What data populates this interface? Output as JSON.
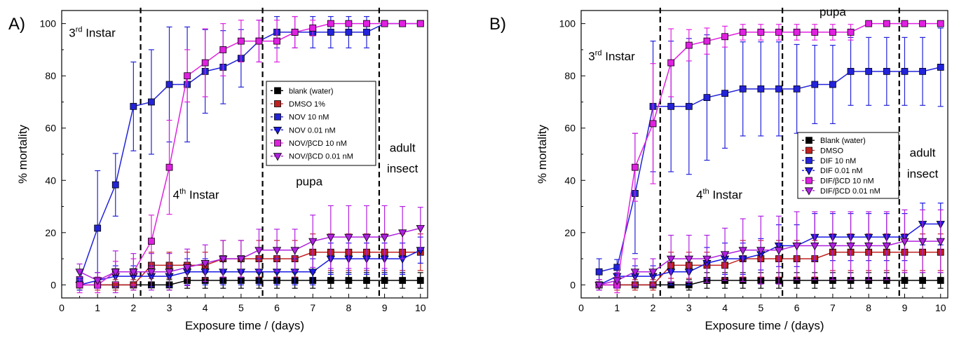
{
  "chart_data": [
    {
      "type": "line",
      "panel_label": "A)",
      "xlabel": "Exposure time / (days)",
      "ylabel": "% mortality",
      "xlim": [
        0,
        10.2
      ],
      "ylim": [
        -5,
        105
      ],
      "xticks": [
        0,
        1,
        2,
        3,
        4,
        5,
        6,
        7,
        8,
        9,
        10
      ],
      "yticks": [
        0,
        20,
        40,
        60,
        80,
        100
      ],
      "x": [
        0.5,
        1,
        1.5,
        2,
        2.5,
        3,
        3.5,
        4,
        4.5,
        5,
        5.5,
        6,
        6.5,
        7,
        7.5,
        8,
        8.5,
        9,
        9.5,
        10
      ],
      "stage_boundaries": [
        2.2,
        5.6,
        8.85
      ],
      "stage_labels": [
        {
          "base": "3",
          "sup": "rd",
          "rest": " Instar",
          "x": 0.2,
          "y": 95
        },
        {
          "base": "4",
          "sup": "th",
          "rest": " Instar",
          "x": 3.1,
          "y": 33
        },
        {
          "base": "pupa",
          "sup": "",
          "rest": "",
          "x": 6.9,
          "y": 38
        },
        {
          "base": "adult",
          "sup": "",
          "rest": "",
          "x": 9.5,
          "y": 51
        },
        {
          "base": "insect",
          "sup": "",
          "rest": "",
          "x": 9.5,
          "y": 43
        }
      ],
      "legend_position": "center-right",
      "series": [
        {
          "name": "blank (water)",
          "color": "#000000",
          "marker": "square",
          "values": [
            0,
            0,
            0,
            0,
            0,
            0,
            1.7,
            1.7,
            1.7,
            1.7,
            1.7,
            1.7,
            1.7,
            1.7,
            1.7,
            1.7,
            1.7,
            1.7,
            1.7,
            1.7
          ],
          "errors": [
            1,
            1,
            1,
            1,
            1,
            2,
            3,
            3,
            3,
            3,
            3,
            3,
            3,
            3,
            3,
            3,
            3,
            3,
            3,
            3
          ]
        },
        {
          "name": "DMSO 1%",
          "color": "#c02020",
          "marker": "square",
          "values": [
            0,
            0,
            0,
            0,
            7.5,
            7.5,
            7.5,
            7.5,
            10,
            10,
            10,
            10,
            10,
            12.5,
            12.5,
            12.5,
            12.5,
            12.5,
            12.5,
            12.5
          ],
          "errors": [
            2,
            2,
            2,
            2,
            5,
            5,
            5,
            5,
            7,
            7,
            7,
            7,
            7,
            7,
            7,
            7,
            7,
            7,
            7,
            7
          ]
        },
        {
          "name": "NOV 10 nM",
          "color": "#2323d9",
          "marker": "square",
          "values": [
            2,
            21.7,
            38.3,
            68.3,
            70,
            76.7,
            76.7,
            81.7,
            83.3,
            86.7,
            93.3,
            96.7,
            96.7,
            96.7,
            96.7,
            96.7,
            96.7,
            100,
            100,
            100
          ],
          "errors": [
            3,
            22,
            12,
            17,
            20,
            22,
            22,
            16,
            14,
            11,
            8,
            6,
            6,
            6,
            6,
            6,
            6,
            0,
            0,
            0
          ]
        },
        {
          "name": "NOV 0.01 nM",
          "color": "#1a1ae6",
          "marker": "triangle-down",
          "values": [
            0,
            1.7,
            3.3,
            3.3,
            3.3,
            3.3,
            5,
            5,
            5,
            5,
            5,
            5,
            5,
            5,
            10,
            10,
            10,
            10,
            10,
            13.3
          ],
          "errors": [
            2,
            3,
            4,
            4,
            4,
            4,
            5,
            5,
            5,
            5,
            5,
            5,
            5,
            5,
            6,
            6,
            6,
            6,
            6,
            5
          ]
        },
        {
          "name": "NOV/βCD 10 nM",
          "color": "#e020e0",
          "marker": "square",
          "values": [
            0,
            0,
            5,
            5,
            16.7,
            45,
            80,
            85,
            90,
            93.3,
            93.3,
            93.3,
            96.7,
            98.3,
            100,
            100,
            100,
            100,
            100,
            100
          ],
          "errors": [
            3,
            3,
            4,
            5,
            10,
            18,
            10,
            13,
            10,
            8,
            8,
            8,
            6,
            3,
            0,
            0,
            0,
            0,
            0,
            0
          ]
        },
        {
          "name": "NOV/βCD 0.01 nM",
          "color": "#b020e0",
          "marker": "triangle-down",
          "values": [
            5,
            1.7,
            5,
            5,
            5,
            5,
            6.7,
            8.3,
            10,
            10,
            13.3,
            13.3,
            13.3,
            16.7,
            18.3,
            18.3,
            18.3,
            18.3,
            20,
            21.7
          ],
          "errors": [
            3,
            3,
            8,
            7,
            7,
            7,
            7,
            7,
            7,
            7,
            8,
            8,
            8,
            10,
            12,
            12,
            12,
            12,
            10,
            8
          ]
        }
      ],
      "legend_entries": [
        {
          "label": "blank (water)",
          "color": "#000000",
          "marker": "square"
        },
        {
          "label": "DMSO 1%",
          "color": "#c02020",
          "marker": "square"
        },
        {
          "label": "NOV 10 nM",
          "color": "#2323d9",
          "marker": "square"
        },
        {
          "label": "NOV 0.01 nM",
          "color": "#1a1ae6",
          "marker": "triangle-down"
        },
        {
          "label": "NOV/βCD 10 nM",
          "color": "#e020e0",
          "marker": "square"
        },
        {
          "label": "NOV/βCD 0.01 nM",
          "color": "#b020e0",
          "marker": "triangle-down"
        }
      ]
    },
    {
      "type": "line",
      "panel_label": "B)",
      "xlabel": "Exposure time / (days)",
      "ylabel": "% mortality",
      "xlim": [
        0,
        10.2
      ],
      "ylim": [
        -5,
        105
      ],
      "xticks": [
        0,
        1,
        2,
        3,
        4,
        5,
        6,
        7,
        8,
        9,
        10
      ],
      "yticks": [
        0,
        20,
        40,
        60,
        80,
        100
      ],
      "x": [
        0.5,
        1,
        1.5,
        2,
        2.5,
        3,
        3.5,
        4,
        4.5,
        5,
        5.5,
        6,
        6.5,
        7,
        7.5,
        8,
        8.5,
        9,
        9.5,
        10
      ],
      "stage_boundaries": [
        2.2,
        5.6,
        8.85
      ],
      "stage_labels": [
        {
          "base": "pupa",
          "sup": "",
          "rest": "",
          "x": 7.0,
          "y": 103
        },
        {
          "base": "3",
          "sup": "rd",
          "rest": " Instar",
          "x": 0.2,
          "y": 86
        },
        {
          "base": "4",
          "sup": "th",
          "rest": " Instar",
          "x": 3.2,
          "y": 33
        },
        {
          "base": "adult",
          "sup": "",
          "rest": "",
          "x": 9.5,
          "y": 49
        },
        {
          "base": "insect",
          "sup": "",
          "rest": "",
          "x": 9.5,
          "y": 41
        }
      ],
      "legend_position": "center-right",
      "series": [
        {
          "name": "Blank (water)",
          "color": "#000000",
          "marker": "square",
          "values": [
            0,
            0,
            0,
            0,
            0,
            0,
            1.7,
            1.7,
            1.7,
            1.7,
            1.7,
            1.7,
            1.7,
            1.7,
            1.7,
            1.7,
            1.7,
            1.7,
            1.7,
            1.7
          ],
          "errors": [
            1,
            1,
            1,
            1,
            1,
            2,
            3,
            3,
            3,
            3,
            3,
            3,
            3,
            3,
            3,
            3,
            3,
            3,
            3,
            3
          ]
        },
        {
          "name": "DMSO",
          "color": "#c02020",
          "marker": "square",
          "values": [
            0,
            0,
            0,
            0,
            7.5,
            7.5,
            7.5,
            7.5,
            10,
            10,
            10,
            10,
            10,
            12.5,
            12.5,
            12.5,
            12.5,
            12.5,
            12.5,
            12.5
          ],
          "errors": [
            2,
            2,
            2,
            2,
            5,
            5,
            5,
            5,
            7,
            7,
            7,
            7,
            7,
            7,
            7,
            7,
            7,
            7,
            7,
            7
          ]
        },
        {
          "name": "DIF 10 nM",
          "color": "#2323d9",
          "marker": "square",
          "values": [
            5,
            6.7,
            35,
            68.3,
            68.3,
            68.3,
            71.7,
            73.3,
            75,
            75,
            75,
            75,
            76.7,
            76.7,
            81.7,
            81.7,
            81.7,
            81.7,
            81.7,
            83.3
          ],
          "errors": [
            5,
            3,
            23,
            25,
            25,
            26,
            24,
            21,
            18,
            18,
            18,
            17,
            15,
            15,
            13,
            13,
            13,
            13,
            13,
            15
          ]
        },
        {
          "name": "DIF 0.01 nM",
          "color": "#1a1ae6",
          "marker": "triangle-down",
          "values": [
            0,
            3.3,
            3.3,
            3.3,
            5,
            5,
            8.3,
            10,
            10,
            11.7,
            15,
            15,
            18.3,
            18.3,
            18.3,
            18.3,
            18.3,
            18.3,
            23.3,
            23.3
          ],
          "errors": [
            2,
            3,
            4,
            4,
            5,
            5,
            6,
            6,
            6,
            6,
            8,
            8,
            9,
            9,
            9,
            9,
            9,
            9,
            8,
            8
          ]
        },
        {
          "name": "DIF/βCD 10 nM",
          "color": "#e020e0",
          "marker": "square",
          "values": [
            0,
            0,
            45,
            61.7,
            85,
            91.7,
            93.3,
            95,
            96.7,
            96.7,
            96.7,
            96.7,
            96.7,
            96.7,
            96.7,
            100,
            100,
            100,
            100,
            100
          ],
          "errors": [
            2,
            3,
            13,
            23,
            13,
            6,
            5,
            4,
            3,
            3,
            3,
            3,
            3,
            3,
            3,
            0,
            0,
            0,
            0,
            0
          ]
        },
        {
          "name": "DIF/βCD 0.01 nM",
          "color": "#b020e0",
          "marker": "triangle-down",
          "values": [
            0,
            1.7,
            5,
            5,
            10,
            10,
            10,
            11.7,
            13.3,
            13.3,
            13.3,
            15,
            15,
            15,
            15,
            15,
            15,
            16.7,
            16.7,
            16.7
          ],
          "errors": [
            2,
            3,
            5,
            5,
            9,
            9,
            9,
            10,
            12,
            13,
            13,
            13,
            13,
            13,
            13,
            13,
            13,
            12,
            12,
            12
          ]
        }
      ],
      "legend_entries": [
        {
          "label": "Blank (water)",
          "color": "#000000",
          "marker": "square"
        },
        {
          "label": "DMSO",
          "color": "#c02020",
          "marker": "square"
        },
        {
          "label": "DIF 10 nM",
          "color": "#2323d9",
          "marker": "square"
        },
        {
          "label": "DIF 0.01 nM",
          "color": "#1a1ae6",
          "marker": "triangle-down"
        },
        {
          "label": "DIF/βCD 10 nM",
          "color": "#e020e0",
          "marker": "square"
        },
        {
          "label": "DIF/βCD 0.01 nM",
          "color": "#b020e0",
          "marker": "triangle-down"
        }
      ]
    }
  ]
}
